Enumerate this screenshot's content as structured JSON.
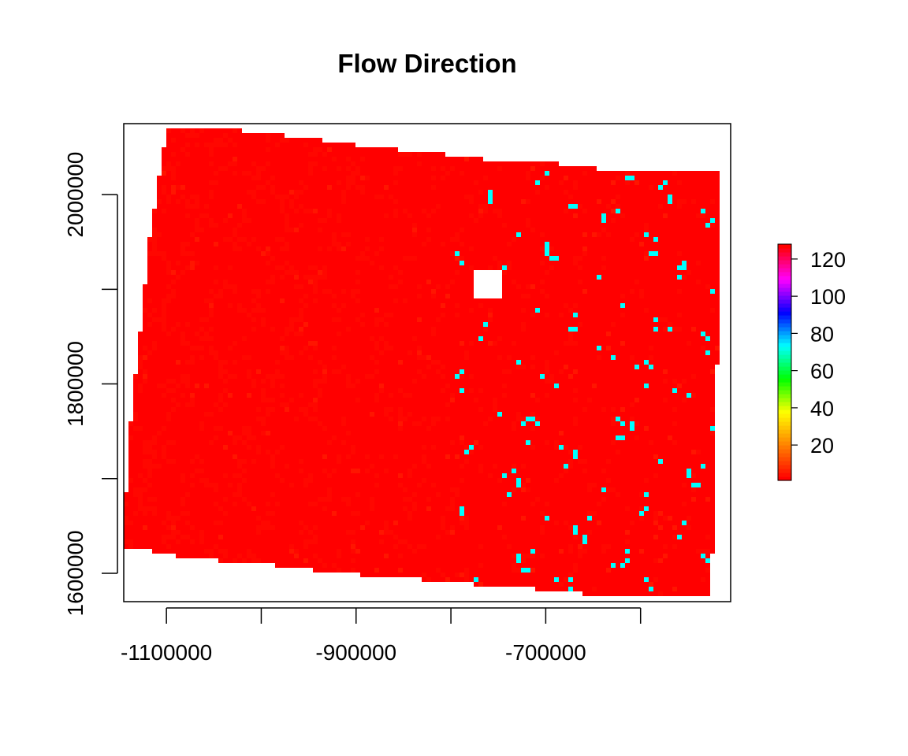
{
  "chart_data": {
    "type": "heatmap",
    "title": "Flow Direction",
    "xlabel": "",
    "ylabel": "",
    "xlim": [
      -1145000,
      -505000
    ],
    "ylim": [
      1570000,
      2075000
    ],
    "x_ticks": [
      {
        "value": -1100000,
        "label": "-1100000"
      },
      {
        "value": -1000000,
        "label": ""
      },
      {
        "value": -900000,
        "label": "-900000"
      },
      {
        "value": -800000,
        "label": ""
      },
      {
        "value": -700000,
        "label": "-700000"
      },
      {
        "value": -600000,
        "label": ""
      }
    ],
    "y_ticks": [
      {
        "value": 1600000,
        "label": "1600000"
      },
      {
        "value": 1700000,
        "label": ""
      },
      {
        "value": 1800000,
        "label": "1800000"
      },
      {
        "value": 1900000,
        "label": ""
      },
      {
        "value": 2000000,
        "label": "2000000"
      }
    ],
    "value_range": [
      1,
      128
    ],
    "legend": {
      "position": "right",
      "ticks": [
        "20",
        "40",
        "60",
        "80",
        "100",
        "120"
      ],
      "tick_values": [
        20,
        40,
        60,
        80,
        100,
        120
      ],
      "colors": [
        "#ff0000",
        "#ff8000",
        "#ffff00",
        "#00ff00",
        "#00ffff",
        "#0000ff",
        "#ff00ff",
        "#ff0000"
      ]
    },
    "extent": {
      "top_edge": [
        [
          -1095000,
          2068000
        ],
        [
          -1030000,
          2068000
        ],
        [
          -1000000,
          2066000
        ],
        [
          -940000,
          2058000
        ],
        [
          -880000,
          2050000
        ],
        [
          -820000,
          2044000
        ],
        [
          -760000,
          2037000
        ],
        [
          -700000,
          2034000
        ],
        [
          -640000,
          2027000
        ],
        [
          -585000,
          2025000
        ],
        [
          -515000,
          2024000
        ]
      ],
      "bottom_edge": [
        [
          -1145000,
          1628000
        ],
        [
          -1110000,
          1622000
        ],
        [
          -1080000,
          1616000
        ],
        [
          -1030000,
          1612000
        ],
        [
          -980000,
          1608000
        ],
        [
          -920000,
          1600000
        ],
        [
          -860000,
          1596000
        ],
        [
          -800000,
          1590000
        ],
        [
          -740000,
          1586000
        ],
        [
          -680000,
          1580000
        ],
        [
          -620000,
          1575000
        ],
        [
          -525000,
          1575000
        ]
      ],
      "left_edge": [
        [
          -1100000,
          2068000
        ],
        [
          -1118000,
          1950000
        ],
        [
          -1128000,
          1850000
        ],
        [
          -1140000,
          1740000
        ],
        [
          -1145000,
          1630000
        ]
      ],
      "right_edge": [
        [
          -515000,
          2024000
        ],
        [
          -517000,
          1900000
        ],
        [
          -520000,
          1790000
        ],
        [
          -523000,
          1680000
        ],
        [
          -525000,
          1575000
        ]
      ]
    },
    "categories": {
      "dominant": 1,
      "secondary": 2,
      "ridge": 4,
      "stream": 64
    },
    "no_data_patch": [
      -760000,
      1905000
    ]
  }
}
